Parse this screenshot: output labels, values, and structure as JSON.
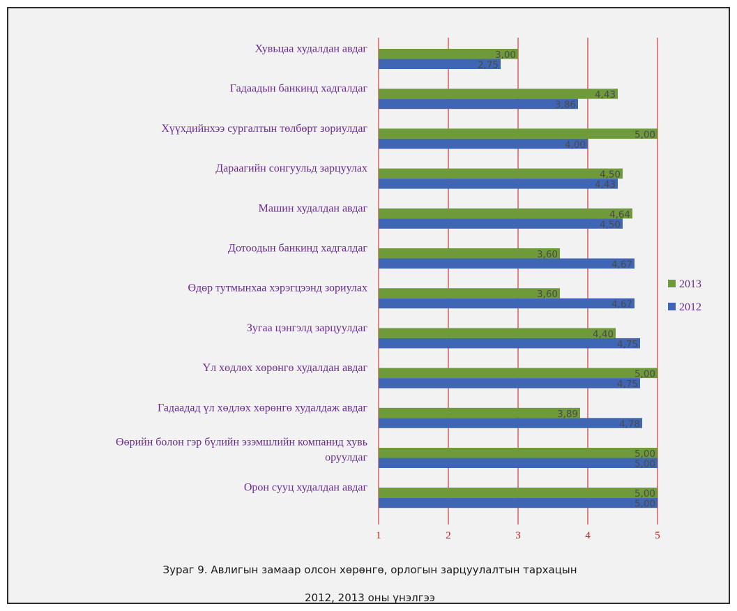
{
  "chart_data": {
    "type": "bar",
    "orientation": "horizontal",
    "categories": [
      "Хувьцаа худалдан авдаг",
      "Гадаадын банкинд хадгалдаг",
      "Хүүхдийнхээ сургалтын төлбөрт зориулдаг",
      "Дараагийн сонгуульд зарцуулах",
      "Машин худалдан авдаг",
      "Дотоодын банкинд хадгалдаг",
      "Өдөр тутмынхаа хэрэгцээнд зориулах",
      "Зугаа цэнгэлд зарцуулдаг",
      "Үл хөдлөх хөрөнгө худалдан авдаг",
      "Гадаадад үл хөдлөх хөрөнгө худалдаж авдаг",
      "Өөрийн болон гэр бүлийн эзэмшлийн компанид хувь оруулдаг",
      "Орон сууц худалдан авдаг"
    ],
    "series": [
      {
        "name": "2013",
        "color": "#6e9a3a",
        "values": [
          3.0,
          4.43,
          5.0,
          4.5,
          4.64,
          3.6,
          3.6,
          4.4,
          5.0,
          3.89,
          5.0,
          5.0
        ]
      },
      {
        "name": "2012",
        "color": "#3f66b5",
        "values": [
          2.75,
          3.86,
          4.0,
          4.43,
          4.5,
          4.67,
          4.67,
          4.75,
          4.75,
          4.78,
          5.0,
          5.0
        ]
      }
    ],
    "data_labels": {
      "2013": [
        "3,00",
        "4,43",
        "5,00",
        "4,50",
        "4,64",
        "3,60",
        "3,60",
        "4,40",
        "5,00",
        "3,89",
        "5,00",
        "5,00"
      ],
      "2012": [
        "2,75",
        "3,86",
        "4,00",
        "4,43",
        "4,50",
        "4,67",
        "4,67",
        "4,75",
        "4,75",
        "4,78",
        "5,00",
        "5,00"
      ]
    },
    "x_ticks": [
      "1",
      "2",
      "3",
      "4",
      "5"
    ],
    "xlim": [
      1,
      5
    ],
    "gridlines": true,
    "gridline_color": "#cc1111",
    "legend_position": "right",
    "label_color": "#6a2c91"
  },
  "caption": {
    "line1": "Зураг 9. Авлигын замаар олсон хөрөнгө, орлогын зарцуулалтын тархацын",
    "line2": "2012, 2013 оны үнэлгээ"
  }
}
